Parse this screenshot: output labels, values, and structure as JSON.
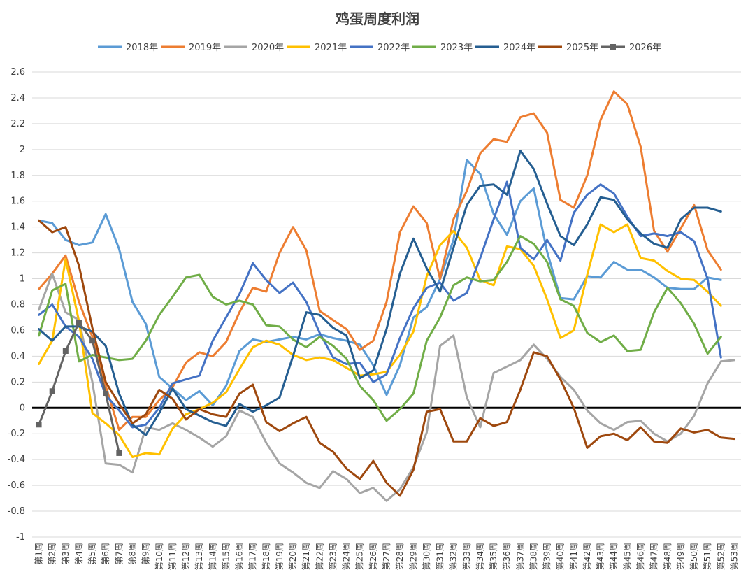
{
  "chart_data": {
    "type": "line",
    "title": "鸡蛋周度利润",
    "xlabel": "",
    "ylabel": "",
    "ylim": [
      -1,
      2.6
    ],
    "ytick_step": 0.2,
    "grid": true,
    "legend_position": "top",
    "categories": [
      "第1周",
      "第2周",
      "第3周",
      "第4周",
      "第5周",
      "第6周",
      "第7周",
      "第8周",
      "第9周",
      "第10周",
      "第11周",
      "第12周",
      "第13周",
      "第14周",
      "第15周",
      "第16周",
      "第17周",
      "第18周",
      "第19周",
      "第20周",
      "第21周",
      "第22周",
      "第23周",
      "第24周",
      "第25周",
      "第26周",
      "第27周",
      "第28周",
      "第29周",
      "第30周",
      "第31周",
      "第32周",
      "第33周",
      "第34周",
      "第35周",
      "第36周",
      "第37周",
      "第38周",
      "第39周",
      "第40周",
      "第41周",
      "第42周",
      "第43周",
      "第44周",
      "第45周",
      "第46周",
      "第47周",
      "第48周",
      "第49周",
      "第50周",
      "第51周",
      "第52周",
      "第53周"
    ],
    "series": [
      {
        "name": "2018年",
        "color": "#5b9bd5",
        "marker": "none",
        "values": [
          1.45,
          1.43,
          1.3,
          1.26,
          1.28,
          1.5,
          1.23,
          0.82,
          0.65,
          0.24,
          0.15,
          0.06,
          0.13,
          0.02,
          0.17,
          0.44,
          0.53,
          0.51,
          0.53,
          0.55,
          0.53,
          0.57,
          0.54,
          0.52,
          0.49,
          0.33,
          0.1,
          0.33,
          0.7,
          0.78,
          1.0,
          1.3,
          1.92,
          1.81,
          1.5,
          1.34,
          1.6,
          1.7,
          1.21,
          0.85,
          0.84,
          1.02,
          1.01,
          1.13,
          1.07,
          1.07,
          1.01,
          0.93,
          0.92,
          0.92,
          1.01,
          0.99,
          null
        ]
      },
      {
        "name": "2019年",
        "color": "#ed7d31",
        "marker": "none",
        "values": [
          0.92,
          1.04,
          1.18,
          0.82,
          0.55,
          0.17,
          -0.17,
          -0.07,
          -0.07,
          0.06,
          0.16,
          0.35,
          0.43,
          0.4,
          0.51,
          0.74,
          0.93,
          0.9,
          1.2,
          1.4,
          1.22,
          0.75,
          0.68,
          0.61,
          0.45,
          0.52,
          0.82,
          1.36,
          1.56,
          1.43,
          1.0,
          1.46,
          1.68,
          1.97,
          2.08,
          2.06,
          2.25,
          2.28,
          2.13,
          1.61,
          1.55,
          1.8,
          2.23,
          2.45,
          2.35,
          2.02,
          1.37,
          1.21,
          1.39,
          1.57,
          1.22,
          1.07,
          null
        ]
      },
      {
        "name": "2020年",
        "color": "#a5a5a5",
        "marker": "none",
        "values": [
          0.76,
          1.04,
          0.74,
          0.68,
          0.2,
          -0.43,
          -0.44,
          -0.5,
          -0.15,
          -0.17,
          -0.12,
          -0.17,
          -0.23,
          -0.3,
          -0.22,
          -0.02,
          -0.07,
          -0.27,
          -0.43,
          -0.5,
          -0.58,
          -0.62,
          -0.49,
          -0.55,
          -0.66,
          -0.62,
          -0.72,
          -0.63,
          -0.46,
          -0.19,
          0.48,
          0.56,
          0.08,
          -0.15,
          0.27,
          0.32,
          0.37,
          0.49,
          0.38,
          0.24,
          0.14,
          -0.02,
          -0.12,
          -0.17,
          -0.11,
          -0.1,
          -0.2,
          -0.26,
          -0.2,
          -0.06,
          0.19,
          0.36,
          0.37
        ]
      },
      {
        "name": "2021年",
        "color": "#ffc000",
        "marker": "none",
        "values": [
          0.34,
          0.52,
          1.15,
          0.67,
          -0.04,
          -0.12,
          -0.21,
          -0.38,
          -0.35,
          -0.36,
          -0.16,
          -0.05,
          -0.01,
          0.04,
          0.12,
          0.3,
          0.47,
          0.52,
          0.49,
          0.41,
          0.37,
          0.39,
          0.37,
          0.31,
          0.25,
          0.26,
          0.28,
          0.41,
          0.59,
          1.02,
          1.26,
          1.37,
          1.24,
          0.99,
          0.95,
          1.25,
          1.23,
          1.1,
          0.84,
          0.54,
          0.6,
          1.03,
          1.42,
          1.36,
          1.42,
          1.16,
          1.14,
          1.06,
          1.0,
          0.99,
          0.9,
          0.79,
          null
        ]
      },
      {
        "name": "2022年",
        "color": "#4472c4",
        "marker": "none",
        "values": [
          0.72,
          0.8,
          0.63,
          0.55,
          0.38,
          0.1,
          -0.02,
          -0.15,
          -0.13,
          0.0,
          0.19,
          0.22,
          0.25,
          0.52,
          0.7,
          0.88,
          1.12,
          0.99,
          0.89,
          0.97,
          0.82,
          0.58,
          0.39,
          0.34,
          0.35,
          0.2,
          0.26,
          0.54,
          0.77,
          0.93,
          0.97,
          0.83,
          0.89,
          1.16,
          1.46,
          1.75,
          1.24,
          1.15,
          1.3,
          1.14,
          1.51,
          1.65,
          1.73,
          1.66,
          1.48,
          1.33,
          1.35,
          1.33,
          1.36,
          1.29,
          1.0,
          0.39,
          null
        ]
      },
      {
        "name": "2023年",
        "color": "#70ad47",
        "marker": "none",
        "values": [
          0.56,
          0.91,
          0.96,
          0.36,
          0.41,
          0.39,
          0.37,
          0.38,
          0.52,
          0.72,
          0.86,
          1.01,
          1.03,
          0.86,
          0.8,
          0.83,
          0.8,
          0.64,
          0.63,
          0.53,
          0.47,
          0.55,
          0.48,
          0.38,
          0.17,
          0.06,
          -0.1,
          -0.01,
          0.11,
          0.52,
          0.7,
          0.95,
          1.01,
          0.98,
          0.99,
          1.13,
          1.33,
          1.27,
          1.13,
          0.84,
          0.79,
          0.58,
          0.51,
          0.56,
          0.44,
          0.45,
          0.74,
          0.93,
          0.81,
          0.65,
          0.42,
          0.55,
          null
        ]
      },
      {
        "name": "2024年",
        "color": "#255e91",
        "marker": "none",
        "values": [
          0.61,
          0.52,
          0.63,
          0.63,
          0.59,
          0.48,
          0.11,
          -0.13,
          -0.21,
          -0.04,
          0.15,
          -0.01,
          -0.06,
          -0.11,
          -0.14,
          0.03,
          -0.03,
          0.02,
          0.08,
          0.4,
          0.74,
          0.72,
          0.62,
          0.56,
          0.23,
          0.29,
          0.61,
          1.04,
          1.31,
          1.08,
          0.9,
          1.24,
          1.57,
          1.72,
          1.73,
          1.65,
          1.99,
          1.85,
          1.58,
          1.33,
          1.26,
          1.42,
          1.63,
          1.61,
          1.46,
          1.35,
          1.27,
          1.24,
          1.46,
          1.55,
          1.55,
          1.52,
          null
        ]
      },
      {
        "name": "2025年",
        "color": "#9e480e",
        "marker": "none",
        "values": [
          1.45,
          1.36,
          1.4,
          1.1,
          0.62,
          0.2,
          0.03,
          -0.12,
          -0.05,
          0.14,
          0.07,
          -0.09,
          -0.01,
          -0.05,
          -0.07,
          0.11,
          0.18,
          -0.11,
          -0.18,
          -0.12,
          -0.07,
          -0.27,
          -0.34,
          -0.47,
          -0.55,
          -0.41,
          -0.58,
          -0.68,
          -0.48,
          -0.03,
          -0.01,
          -0.26,
          -0.26,
          -0.08,
          -0.14,
          -0.11,
          0.14,
          0.43,
          0.4,
          0.22,
          0.0,
          -0.31,
          -0.22,
          -0.2,
          -0.25,
          -0.15,
          -0.26,
          -0.27,
          -0.16,
          -0.19,
          -0.17,
          -0.23,
          -0.24
        ]
      },
      {
        "name": "2026年",
        "color": "#636363",
        "marker": "square",
        "values": [
          -0.13,
          0.13,
          0.44,
          0.66,
          0.52,
          0.11,
          -0.35,
          null,
          null,
          null,
          null,
          null,
          null,
          null,
          null,
          null,
          null,
          null,
          null,
          null,
          null,
          null,
          null,
          null,
          null,
          null,
          null,
          null,
          null,
          null,
          null,
          null,
          null,
          null,
          null,
          null,
          null,
          null,
          null,
          null,
          null,
          null,
          null,
          null,
          null,
          null,
          null,
          null,
          null,
          null,
          null,
          null,
          null
        ]
      }
    ]
  }
}
